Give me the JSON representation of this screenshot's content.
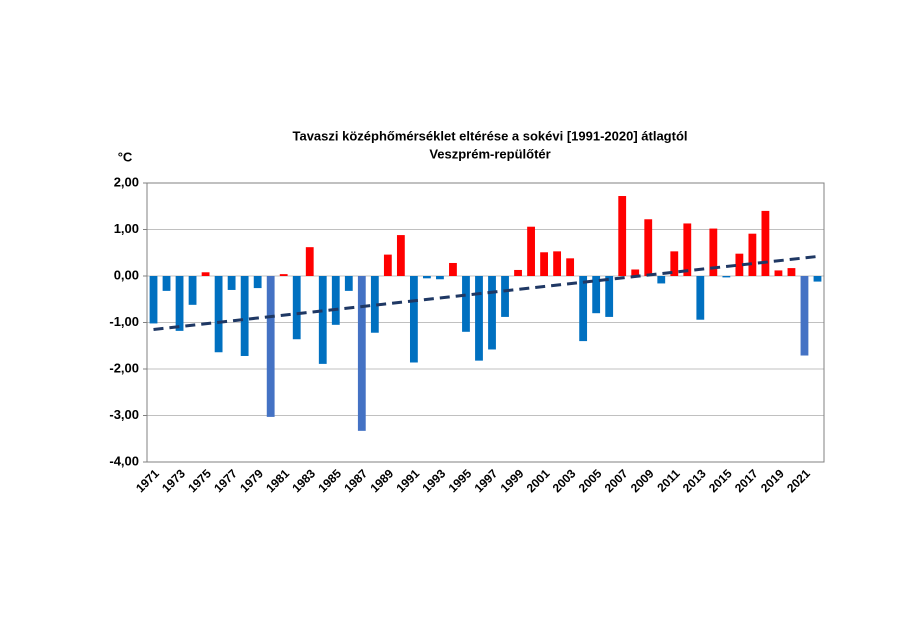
{
  "chart_data": {
    "type": "bar",
    "title": "Tavaszi középhőmérséklet  eltérése a sokévi [1991-2020] átlagtól",
    "subtitle": "Veszprém-repülőtér",
    "y_label": "°C",
    "categories": [
      "1971",
      null,
      "1973",
      null,
      "1975",
      null,
      "1977",
      null,
      "1979",
      null,
      "1981",
      null,
      "1983",
      null,
      "1985",
      null,
      "1987",
      null,
      "1989",
      null,
      "1991",
      null,
      "1993",
      null,
      "1995",
      null,
      "1997",
      null,
      "1999",
      null,
      "2001",
      null,
      "2003",
      null,
      "2005",
      null,
      "2007",
      null,
      "2009",
      null,
      "2011",
      null,
      "2013",
      null,
      "2015",
      null,
      "2017",
      null,
      "2019",
      null,
      "2021",
      null
    ],
    "values": [
      -1.02,
      -0.32,
      -1.18,
      -0.62,
      0.08,
      -1.64,
      -0.3,
      -1.72,
      -0.26,
      -3.03,
      0.04,
      -1.36,
      0.62,
      -1.89,
      -1.05,
      -0.32,
      -3.33,
      -1.22,
      0.46,
      0.88,
      -1.86,
      -0.05,
      -0.07,
      0.28,
      -1.2,
      -1.82,
      -1.58,
      -0.88,
      0.13,
      1.06,
      0.51,
      0.53,
      0.38,
      -1.4,
      -0.8,
      -0.88,
      1.72,
      0.14,
      1.22,
      -0.16,
      0.53,
      1.13,
      -0.94,
      1.02,
      -0.03,
      0.48,
      0.91,
      1.4,
      0.12,
      0.17,
      -1.71,
      -0.12
    ],
    "colors": [
      "#0070c0",
      "#0070c0",
      "#0070c0",
      "#0070c0",
      "#ff0000",
      "#0070c0",
      "#0070c0",
      "#0070c0",
      "#0070c0",
      "#4472c4",
      "#ff0000",
      "#0070c0",
      "#ff0000",
      "#0070c0",
      "#0070c0",
      "#0070c0",
      "#4472c4",
      "#0070c0",
      "#ff0000",
      "#ff0000",
      "#0070c0",
      "#0070c0",
      "#0070c0",
      "#ff0000",
      "#0070c0",
      "#0070c0",
      "#0070c0",
      "#0070c0",
      "#ff0000",
      "#ff0000",
      "#ff0000",
      "#ff0000",
      "#ff0000",
      "#0070c0",
      "#0070c0",
      "#0070c0",
      "#ff0000",
      "#ff0000",
      "#ff0000",
      "#0070c0",
      "#ff0000",
      "#ff0000",
      "#0070c0",
      "#ff0000",
      "#0070c0",
      "#ff0000",
      "#ff0000",
      "#ff0000",
      "#ff0000",
      "#ff0000",
      "#4472c4",
      "#0070c0"
    ],
    "trendline": {
      "color": "#1f3864",
      "values": [
        -1.15,
        0.42
      ]
    },
    "ylim": [
      -4,
      2
    ],
    "yticks": [
      {
        "value": -4,
        "label": "-4,00"
      },
      {
        "value": -3,
        "label": "-3,00"
      },
      {
        "value": -2,
        "label": "-2,00"
      },
      {
        "value": -1,
        "label": "-1,00"
      },
      {
        "value": 0,
        "label": "0,00"
      },
      {
        "value": 1,
        "label": "1,00"
      },
      {
        "value": 2,
        "label": "2,00"
      }
    ],
    "grid": true
  }
}
